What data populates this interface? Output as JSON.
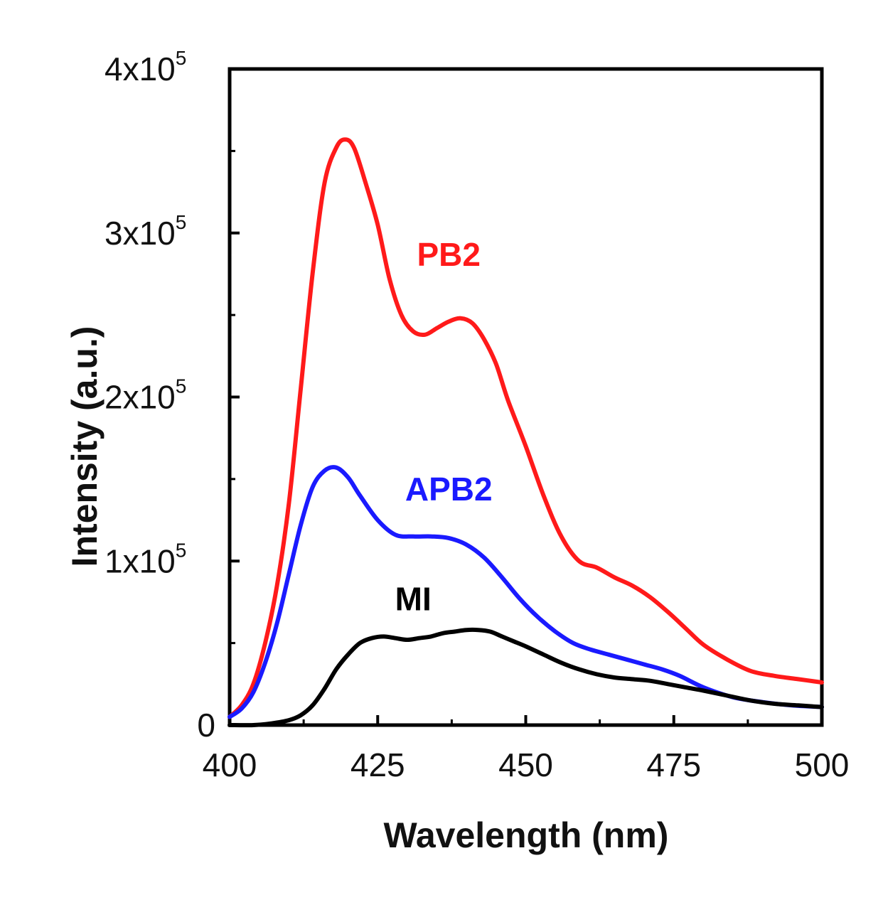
{
  "chart_data": {
    "type": "line",
    "title": "",
    "xlabel": "Wavelength (nm)",
    "ylabel": "Intensity (a.u.)",
    "xlim": [
      400,
      500
    ],
    "ylim": [
      0,
      400000
    ],
    "x_ticks": [
      {
        "value": 400,
        "label": "400"
      },
      {
        "value": 425,
        "label": "425"
      },
      {
        "value": 450,
        "label": "450"
      },
      {
        "value": 475,
        "label": "475"
      },
      {
        "value": 500,
        "label": "500"
      }
    ],
    "y_ticks": [
      {
        "value": 0,
        "base": "0",
        "exp": ""
      },
      {
        "value": 100000,
        "base": "1x10",
        "exp": "5"
      },
      {
        "value": 200000,
        "base": "2x10",
        "exp": "5"
      },
      {
        "value": 300000,
        "base": "3x10",
        "exp": "5"
      },
      {
        "value": 400000,
        "base": "4x10",
        "exp": "5"
      }
    ],
    "series": [
      {
        "name": "PB2",
        "color": "#ff1a1a",
        "x": [
          400,
          402,
          404,
          406,
          408,
          410,
          412,
          414,
          416,
          418,
          419.5,
          421,
          423,
          425,
          427,
          429,
          431,
          433,
          435,
          437,
          439,
          441,
          443,
          445,
          447,
          450,
          453,
          456,
          459,
          462,
          465,
          468,
          471,
          474,
          477,
          480,
          484,
          488,
          492,
          496,
          500
        ],
        "values": [
          5000,
          12000,
          25000,
          50000,
          85000,
          135000,
          205000,
          275000,
          330000,
          352000,
          357000,
          352000,
          330000,
          305000,
          272000,
          250000,
          240000,
          238000,
          242000,
          246000,
          248000,
          245000,
          235000,
          220000,
          198000,
          170000,
          140000,
          115000,
          100000,
          96000,
          90000,
          85000,
          78000,
          69000,
          59000,
          49000,
          40000,
          33000,
          30000,
          28000,
          26000
        ]
      },
      {
        "name": "APB2",
        "color": "#1a1aff",
        "x": [
          400,
          402,
          404,
          406,
          408,
          410,
          412,
          414,
          416,
          418,
          420,
          422,
          425,
          428,
          431,
          434,
          437,
          440,
          443,
          446,
          449,
          452,
          455,
          458,
          461,
          464,
          467,
          470,
          473,
          476,
          480,
          485,
          490,
          495,
          500
        ],
        "values": [
          5000,
          10000,
          20000,
          38000,
          62000,
          92000,
          122000,
          145000,
          155000,
          157000,
          151000,
          140000,
          125000,
          116000,
          115000,
          115000,
          114000,
          110000,
          102000,
          90000,
          77000,
          66000,
          57000,
          50000,
          46000,
          43000,
          40000,
          37000,
          34000,
          30000,
          23000,
          17000,
          14000,
          12000,
          11000
        ]
      },
      {
        "name": "MI",
        "color": "#000000",
        "x": [
          400,
          404,
          407,
          410,
          412,
          414,
          416,
          418,
          420,
          422,
          424,
          426,
          428,
          430,
          432,
          434,
          436,
          438,
          440,
          442,
          444,
          446,
          448,
          450,
          453,
          456,
          459,
          462,
          465,
          468,
          471,
          474,
          477,
          480,
          484,
          488,
          492,
          496,
          500
        ],
        "values": [
          0,
          0,
          1000,
          3000,
          6000,
          12000,
          22000,
          34000,
          43000,
          50000,
          53000,
          54000,
          53000,
          52000,
          53000,
          54000,
          56000,
          57000,
          58000,
          58000,
          57000,
          54000,
          51000,
          48000,
          43000,
          38000,
          34000,
          31000,
          29000,
          28000,
          27000,
          25000,
          23000,
          21000,
          18000,
          15000,
          13000,
          12000,
          11000
        ]
      }
    ],
    "annotations": [
      {
        "text": "PB2",
        "color": "#ff1a1a",
        "x": 437,
        "y": 280000
      },
      {
        "text": "APB2",
        "color": "#1a1aff",
        "x": 437,
        "y": 137000
      },
      {
        "text": "MI",
        "color": "#000000",
        "x": 431,
        "y": 70000
      }
    ]
  }
}
